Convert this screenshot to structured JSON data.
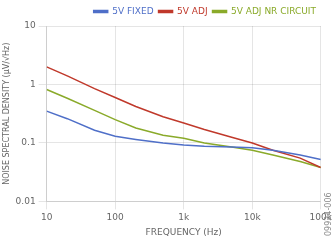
{
  "chart_data": {
    "type": "line",
    "x_label": "FREQUENCY (Hz)",
    "y_label": "NOISE SPECTRAL DENSITY (μV/√Hz)",
    "annotation": "09924-006",
    "x": [
      10,
      20,
      50,
      100,
      200,
      500,
      1000,
      2000,
      5000,
      10000,
      20000,
      50000,
      100000
    ],
    "series": [
      {
        "name": "5V FIXED",
        "color": "#4f6fc8",
        "values": [
          0.35,
          0.26,
          0.165,
          0.13,
          0.115,
          0.1,
          0.092,
          0.088,
          0.085,
          0.083,
          0.075,
          0.062,
          0.052
        ]
      },
      {
        "name": "5V ADJ",
        "color": "#c0392b",
        "values": [
          2.0,
          1.4,
          0.85,
          0.6,
          0.42,
          0.28,
          0.22,
          0.17,
          0.125,
          0.1,
          0.075,
          0.055,
          0.038
        ]
      },
      {
        "name": "5V ADJ NR CIRCUIT",
        "color": "#8aaa2a",
        "values": [
          0.82,
          0.58,
          0.36,
          0.25,
          0.18,
          0.135,
          0.12,
          0.1,
          0.085,
          0.075,
          0.062,
          0.048,
          0.038
        ]
      }
    ],
    "xlim": [
      10,
      100000
    ],
    "ylim": [
      0.01,
      10
    ],
    "xticks": [
      10,
      100,
      {
        "value": 1000,
        "label": "1k"
      },
      {
        "value": 10000,
        "label": "10k"
      },
      {
        "value": 100000,
        "label": "100k"
      }
    ],
    "yticks": [
      0.01,
      0.1,
      1,
      10
    ],
    "log": true,
    "grid": true,
    "legend": "upper right"
  }
}
